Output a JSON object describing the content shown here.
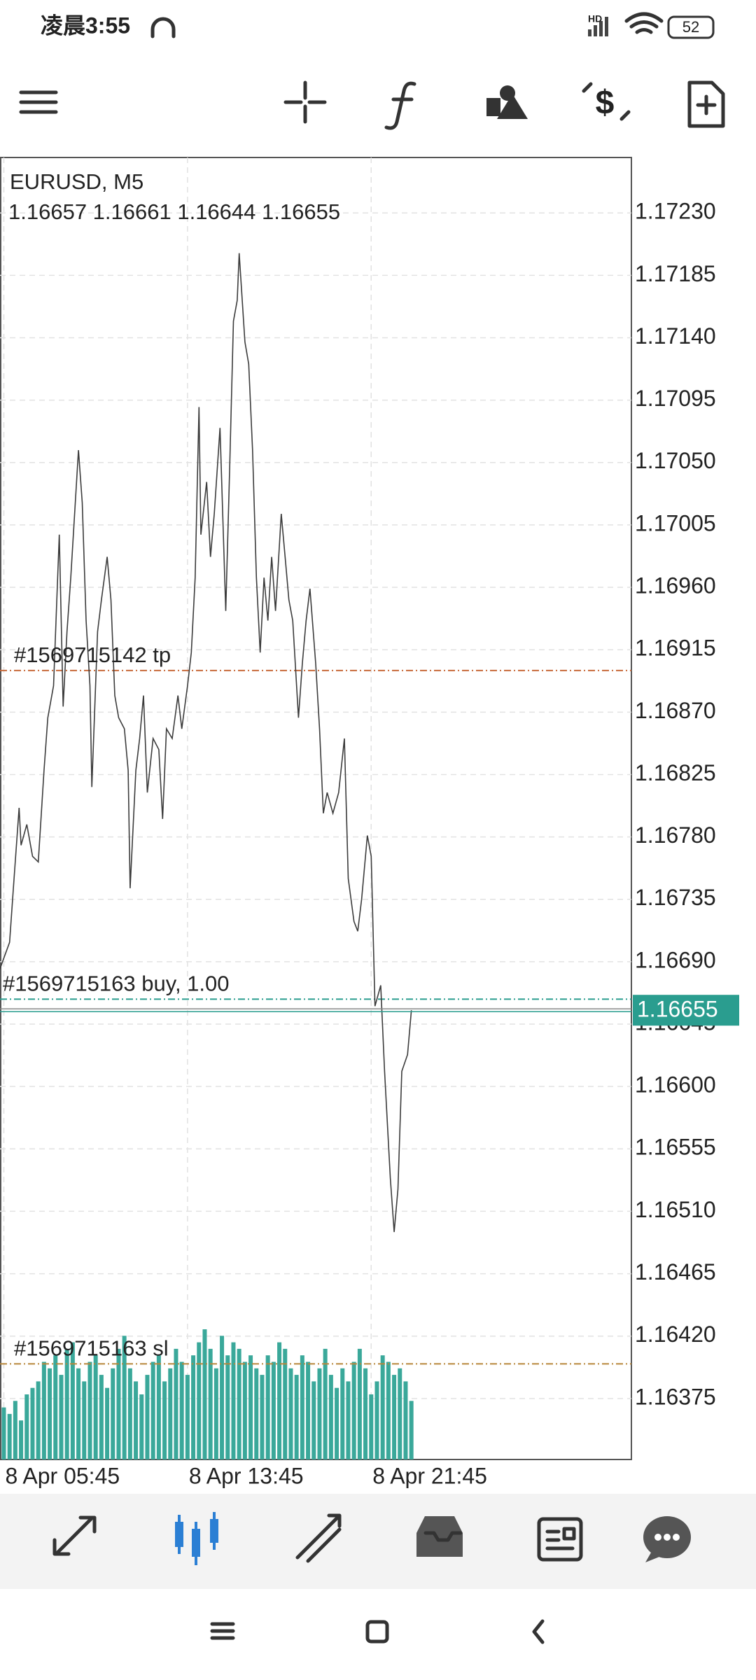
{
  "status_bar": {
    "time": "凌晨3:55",
    "battery": "52"
  },
  "chart_data": {
    "type": "line",
    "title": "EURUSD, M5",
    "ohlc": "1.16657 1.16661 1.16644 1.16655",
    "color": "#3c3c3c",
    "grid": true,
    "xlim": [
      -2,
      328
    ],
    "xticks": [
      {
        "value": 0,
        "label": "8 Apr 05:45"
      },
      {
        "value": 96,
        "label": "8 Apr 13:45"
      },
      {
        "value": 192,
        "label": "8 Apr 21:45"
      }
    ],
    "ylim": [
      1.16331,
      1.1727
    ],
    "yticks": [
      {
        "value": 1.1723,
        "label": "1.17230"
      },
      {
        "value": 1.17185,
        "label": "1.17185"
      },
      {
        "value": 1.1714,
        "label": "1.17140"
      },
      {
        "value": 1.17095,
        "label": "1.17095"
      },
      {
        "value": 1.1705,
        "label": "1.17050"
      },
      {
        "value": 1.17005,
        "label": "1.17005"
      },
      {
        "value": 1.1696,
        "label": "1.16960"
      },
      {
        "value": 1.16915,
        "label": "1.16915"
      },
      {
        "value": 1.1687,
        "label": "1.16870"
      },
      {
        "value": 1.16825,
        "label": "1.16825"
      },
      {
        "value": 1.1678,
        "label": "1.16780"
      },
      {
        "value": 1.16735,
        "label": "1.16735"
      },
      {
        "value": 1.1669,
        "label": "1.16690"
      },
      {
        "value": 1.16645,
        "label": "1.16645"
      },
      {
        "value": 1.166,
        "label": "1.16600"
      },
      {
        "value": 1.16555,
        "label": "1.16555"
      },
      {
        "value": 1.1651,
        "label": "1.16510"
      },
      {
        "value": 1.16465,
        "label": "1.16465"
      },
      {
        "value": 1.1642,
        "label": "1.16420"
      },
      {
        "value": 1.16375,
        "label": "1.16375"
      }
    ],
    "x": [
      -2,
      3,
      5,
      8,
      9,
      12,
      15,
      18,
      21,
      23,
      26,
      29,
      31,
      33,
      35,
      37,
      39,
      41,
      43,
      45,
      46,
      49,
      51,
      54,
      56,
      58,
      60,
      63,
      65,
      66,
      69,
      71,
      73,
      75,
      78,
      81,
      83,
      85,
      88,
      91,
      93,
      96,
      98,
      100,
      102,
      103,
      106,
      108,
      110,
      113,
      116,
      118,
      120,
      122,
      123,
      126,
      128,
      130,
      132,
      134,
      136,
      138,
      140,
      142,
      145,
      147,
      149,
      151,
      154,
      156,
      158,
      160,
      163,
      165,
      167,
      169,
      172,
      175,
      178,
      180,
      183,
      185,
      187,
      190,
      192,
      194,
      197,
      199,
      202,
      204,
      206,
      208,
      211,
      213
    ],
    "values": [
      1.16685,
      1.16704,
      1.16743,
      1.16801,
      1.16774,
      1.16789,
      1.16766,
      1.16762,
      1.16828,
      1.16866,
      1.16889,
      1.16998,
      1.16874,
      1.16928,
      1.16967,
      1.17013,
      1.17059,
      1.17021,
      1.16936,
      1.16889,
      1.16816,
      1.16928,
      1.16951,
      1.16982,
      1.16951,
      1.16882,
      1.16866,
      1.16858,
      1.16828,
      1.16743,
      1.16828,
      1.16851,
      1.16882,
      1.16812,
      1.16851,
      1.16843,
      1.16793,
      1.16858,
      1.16851,
      1.16882,
      1.16858,
      1.16889,
      1.16913,
      1.16967,
      1.1709,
      1.16998,
      1.17036,
      1.16982,
      1.17013,
      1.17075,
      1.16943,
      1.17044,
      1.17152,
      1.17167,
      1.17201,
      1.17137,
      1.17121,
      1.17059,
      1.16967,
      1.16913,
      1.16967,
      1.16936,
      1.16982,
      1.16943,
      1.17013,
      1.16982,
      1.16951,
      1.16936,
      1.16866,
      1.16905,
      1.16936,
      1.16959,
      1.16905,
      1.16858,
      1.16797,
      1.16812,
      1.16797,
      1.16812,
      1.16851,
      1.1675,
      1.16719,
      1.16712,
      1.16735,
      1.16781,
      1.16766,
      1.16658,
      1.16673,
      1.16611,
      1.16534,
      1.16495,
      1.16526,
      1.16611,
      1.16623,
      1.16655
    ],
    "volume": {
      "color": "#3aa89a",
      "ylim": [
        0,
        1000
      ],
      "x": [
        0,
        3,
        6,
        9,
        12,
        15,
        18,
        21,
        24,
        27,
        30,
        33,
        36,
        39,
        42,
        45,
        48,
        51,
        54,
        57,
        60,
        63,
        66,
        69,
        72,
        75,
        78,
        81,
        84,
        87,
        90,
        93,
        96,
        99,
        102,
        105,
        108,
        111,
        114,
        117,
        120,
        123,
        126,
        129,
        132,
        135,
        138,
        141,
        144,
        147,
        150,
        153,
        156,
        159,
        162,
        165,
        168,
        171,
        174,
        177,
        180,
        183,
        186,
        189,
        192,
        195,
        198,
        201,
        204,
        207,
        210,
        213
      ],
      "values": [
        40,
        35,
        45,
        30,
        50,
        55,
        60,
        75,
        70,
        80,
        65,
        85,
        90,
        70,
        60,
        75,
        80,
        65,
        55,
        70,
        85,
        95,
        70,
        60,
        50,
        65,
        75,
        80,
        60,
        70,
        85,
        75,
        65,
        80,
        90,
        100,
        85,
        70,
        95,
        80,
        90,
        85,
        75,
        80,
        70,
        65,
        80,
        75,
        90,
        85,
        70,
        65,
        80,
        75,
        60,
        70,
        85,
        65,
        55,
        70,
        60,
        75,
        85,
        70,
        50,
        60,
        80,
        75,
        65,
        70,
        60,
        45
      ]
    },
    "levels": [
      {
        "label": "#1569715142 tp",
        "value": 1.169,
        "color": "#c8693a"
      },
      {
        "label": "#1569715163 buy, 1.00",
        "value": 1.16663,
        "color": "#2a9d8f"
      },
      {
        "label": "#1569715163 sl",
        "value": 1.164,
        "color": "#b8863a"
      }
    ],
    "bid": {
      "value": 1.16655,
      "color": "#2a9d8f"
    }
  }
}
